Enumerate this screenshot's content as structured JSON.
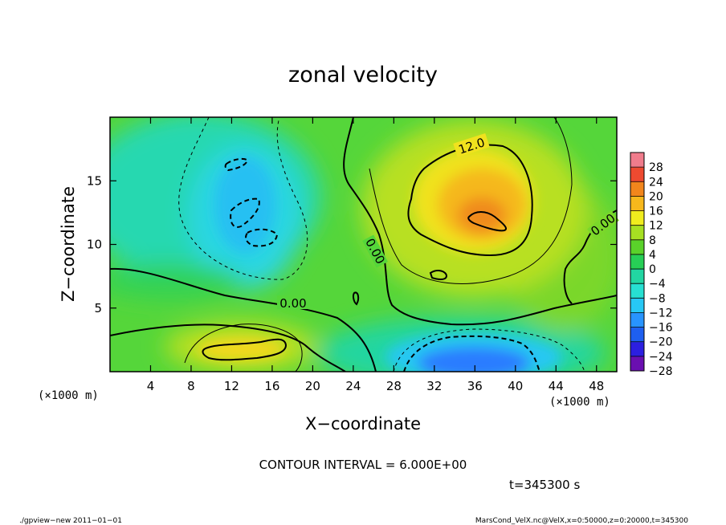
{
  "chart_data": {
    "type": "heatmap",
    "title": "zonal velocity",
    "xlabel": "X−coordinate",
    "ylabel": "Z−coordinate",
    "x_unit_left": "(×1000 m)",
    "x_unit_right": "(×1000 m)",
    "xlim": [
      0,
      50
    ],
    "ylim": [
      0,
      20
    ],
    "x_ticks": [
      4,
      8,
      12,
      16,
      20,
      24,
      28,
      32,
      36,
      40,
      44,
      48
    ],
    "x_tick_labels": [
      "4",
      "8",
      "12",
      "16",
      "20",
      "24",
      "28",
      "32",
      "36",
      "40",
      "44",
      "48"
    ],
    "y_ticks": [
      5,
      10,
      15
    ],
    "y_tick_labels": [
      "5",
      "10",
      "15"
    ],
    "colorbar": {
      "levels": [
        -28,
        -24,
        -20,
        -16,
        -12,
        -8,
        -4,
        0,
        4,
        8,
        12,
        16,
        20,
        24,
        28
      ],
      "labels": [
        "28",
        "24",
        "20",
        "16",
        "12",
        "8",
        "4",
        "0",
        "−4",
        "−8",
        "−12",
        "−16",
        "−20",
        "−24",
        "−28"
      ],
      "colors": [
        "#6a0fb0",
        "#2c1fe0",
        "#1e5ff0",
        "#2894ff",
        "#27c8f5",
        "#27e0d2",
        "#22d6a2",
        "#27cf56",
        "#5ad22a",
        "#a6e022",
        "#f0ec1e",
        "#f7b81c",
        "#f2861c",
        "#ee4a30",
        "#f07c8c"
      ]
    },
    "features": [
      {
        "kind": "positive maximum",
        "x": 37,
        "z": 12,
        "value": 20
      },
      {
        "kind": "positive region",
        "x": 13,
        "z": 1.8,
        "value": 12
      },
      {
        "kind": "negative minimum",
        "x": 36,
        "z": 1,
        "value": -14
      },
      {
        "kind": "negative region",
        "x": 14,
        "z": 13,
        "value": -9
      }
    ],
    "contour_labels": [
      "12.0",
      "0.00",
      "0.00",
      "0.00"
    ],
    "contour_interval_text": "CONTOUR INTERVAL = 6.000E+00",
    "time_text": "t=345300 s",
    "footer_left": "./gpview−new   2011−01−01",
    "footer_right": "MarsCond_VelX.nc@VelX,x=0:50000,z=0:20000,t=345300"
  }
}
